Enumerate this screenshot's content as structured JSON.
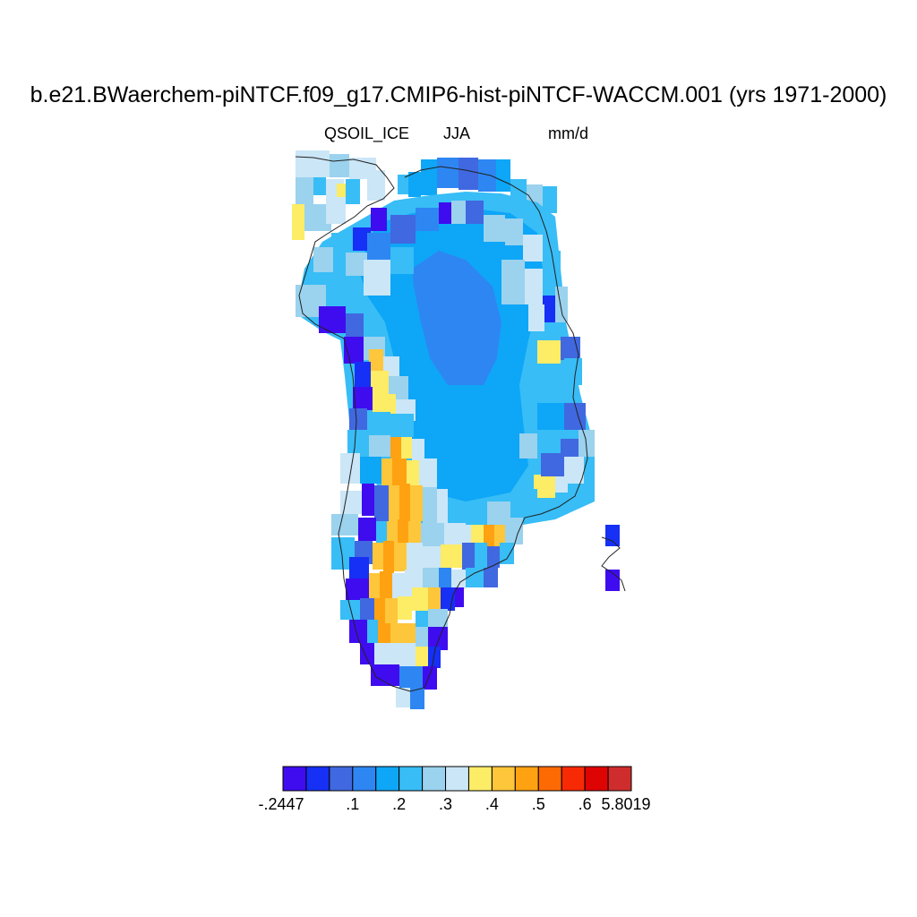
{
  "title": "b.e21.BWaerchem-piNTCF.f09_g17.CMIP6-hist-piNTCF-WACCM.001 (yrs 1971-2000)",
  "subtitle": {
    "variable": "QSOIL_ICE",
    "season": "JJA",
    "units": "mm/d"
  },
  "colorbar": {
    "colors": [
      "#3f0cf0",
      "#1630f5",
      "#4068e0",
      "#2e86f3",
      "#0ea6f7",
      "#38bdf6",
      "#9bd2ee",
      "#cbe6f6",
      "#fdec66",
      "#fec63a",
      "#fea212",
      "#fd6a04",
      "#f82a06",
      "#df0404",
      "#cf2d2d"
    ],
    "labels": [
      "-.2447",
      ".1",
      ".2",
      ".3",
      ".4",
      ".5",
      ".6",
      "5.8019"
    ]
  }
}
